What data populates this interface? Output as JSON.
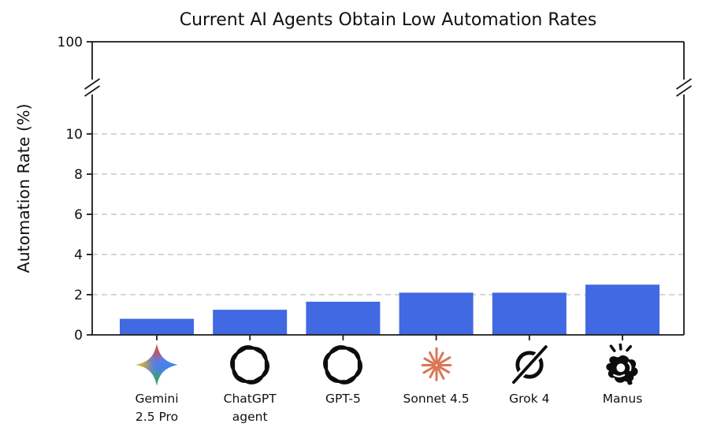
{
  "chart_data": {
    "type": "bar",
    "title": "Current AI Agents Obtain Low Automation Rates",
    "ylabel": "Automation Rate (%)",
    "xlabel": "",
    "categories": [
      {
        "label": "Gemini\n2.5 Pro",
        "icon": "gemini-star-icon"
      },
      {
        "label": "ChatGPT\nagent",
        "icon": "openai-icon"
      },
      {
        "label": "GPT-5",
        "icon": "openai-icon"
      },
      {
        "label": "Sonnet 4.5",
        "icon": "anthropic-starburst-icon"
      },
      {
        "label": "Grok 4",
        "icon": "grok-slashed-circle-icon"
      },
      {
        "label": "Manus",
        "icon": "manus-snap-hand-icon"
      }
    ],
    "values": [
      0.8,
      1.25,
      1.65,
      2.1,
      2.1,
      2.5
    ],
    "yticks_linear": [
      0,
      2,
      4,
      6,
      8,
      10
    ],
    "ytick_after_break": 100,
    "grid_values": [
      2,
      4,
      6,
      8,
      10
    ],
    "axis_break": true,
    "ylim_linear": [
      0,
      12
    ],
    "grid_style": "dashed-horizontal",
    "legend": "none",
    "colors": {
      "bar": "#4169e1",
      "grid": "#c8c8c8",
      "axis": "#1a1a1a",
      "text": "#111111",
      "anthropic": "#d97757"
    }
  }
}
